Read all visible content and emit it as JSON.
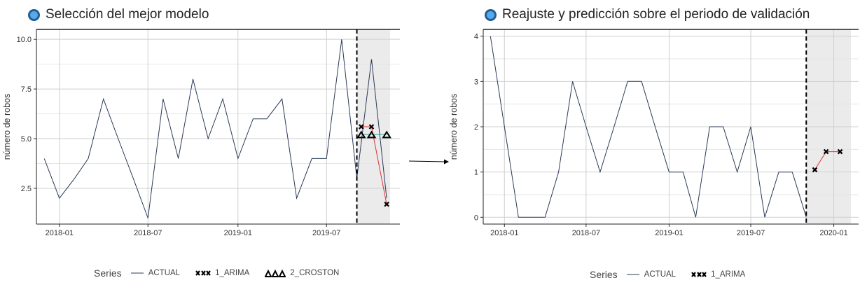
{
  "left_title": "Selección del mejor modelo",
  "right_title": "Reajuste y predicción sobre el periodo de validación",
  "legend_left": {
    "title": "Series",
    "items": [
      "ACTUAL",
      "1_ARIMA",
      "2_CROSTON"
    ]
  },
  "legend_right": {
    "title": "Series",
    "items": [
      "ACTUAL",
      "1_ARIMA"
    ]
  },
  "colors": {
    "actual": "#2b3a57",
    "arima": "#e03030",
    "croston": "#2aa39b",
    "shade": "#ebebeb",
    "grid": "#cfcfcf"
  },
  "icons": [
    "circle-icon",
    "arrow-right-icon"
  ],
  "chart_data": [
    {
      "type": "line",
      "title": "Selección del mejor modelo",
      "xlabel": "",
      "ylabel": "número de robos",
      "xlim": [
        "2017-11-15",
        "2019-11-28"
      ],
      "ylim": [
        0.7,
        10.5
      ],
      "yticks": [
        2.5,
        5.0,
        7.5,
        10.0
      ],
      "ytick_labels": [
        "2.5",
        "5.0",
        "7.5",
        "10.0"
      ],
      "xticks": [
        "2018-01-01",
        "2018-07-01",
        "2019-01-01",
        "2019-07-01"
      ],
      "xtick_labels": [
        "2018-01",
        "2018-07",
        "2019-01",
        "2019-07"
      ],
      "grid": true,
      "vline": "2019-09-01",
      "shade": [
        "2019-09-01",
        "2019-11-08"
      ],
      "series": [
        {
          "name": "ACTUAL",
          "x": [
            "2017-12-01",
            "2018-01-01",
            "2018-02-01",
            "2018-03-01",
            "2018-04-01",
            "2018-05-01",
            "2018-06-01",
            "2018-07-01",
            "2018-08-01",
            "2018-09-01",
            "2018-10-01",
            "2018-11-01",
            "2018-12-01",
            "2019-01-01",
            "2019-02-01",
            "2019-03-01",
            "2019-04-01",
            "2019-05-01",
            "2019-06-01",
            "2019-07-01",
            "2019-08-01",
            "2019-09-01",
            "2019-10-01",
            "2019-11-01"
          ],
          "values": [
            4,
            2,
            3,
            4,
            7,
            5,
            3,
            1,
            7,
            4,
            8,
            5,
            7,
            4,
            6,
            6,
            7,
            2,
            4,
            4,
            10,
            3,
            9,
            2
          ]
        },
        {
          "name": "1_ARIMA",
          "x": [
            "2019-09-10",
            "2019-10-01",
            "2019-11-01"
          ],
          "values": [
            5.6,
            5.6,
            1.7
          ]
        },
        {
          "name": "2_CROSTON",
          "x": [
            "2019-09-10",
            "2019-10-01",
            "2019-11-01"
          ],
          "values": [
            5.2,
            5.2,
            5.2
          ]
        }
      ]
    },
    {
      "type": "line",
      "title": "Reajuste y predicción sobre el periodo de validación",
      "xlabel": "",
      "ylabel": "número de robos",
      "xlim": [
        "2017-11-15",
        "2020-02-25"
      ],
      "ylim": [
        -0.15,
        4.15
      ],
      "yticks": [
        0,
        1,
        2,
        3,
        4
      ],
      "ytick_labels": [
        "0",
        "1",
        "2",
        "3",
        "4"
      ],
      "xticks": [
        "2018-01-01",
        "2018-07-01",
        "2019-01-01",
        "2019-07-01",
        "2020-01-01"
      ],
      "xtick_labels": [
        "2018-01",
        "2018-07",
        "2019-01",
        "2019-07",
        "2020-01"
      ],
      "grid": true,
      "vline": "2019-11-01",
      "shade": [
        "2019-11-01",
        "2020-02-08"
      ],
      "series": [
        {
          "name": "ACTUAL",
          "x": [
            "2017-12-01",
            "2018-01-01",
            "2018-02-01",
            "2018-03-01",
            "2018-04-01",
            "2018-05-01",
            "2018-06-01",
            "2018-07-01",
            "2018-08-01",
            "2018-09-01",
            "2018-10-01",
            "2018-11-01",
            "2018-12-01",
            "2019-01-01",
            "2019-02-01",
            "2019-03-01",
            "2019-04-01",
            "2019-05-01",
            "2019-06-01",
            "2019-07-01",
            "2019-08-01",
            "2019-09-01",
            "2019-10-01",
            "2019-11-01"
          ],
          "values": [
            4,
            2,
            0,
            0,
            0,
            1,
            3,
            2,
            1,
            2,
            3,
            3,
            2,
            1,
            1,
            0,
            2,
            2,
            1,
            2,
            0,
            1,
            1,
            0
          ]
        },
        {
          "name": "1_ARIMA",
          "x": [
            "2019-11-20",
            "2019-12-15",
            "2020-01-15"
          ],
          "values": [
            1.05,
            1.45,
            1.45
          ]
        }
      ]
    }
  ]
}
